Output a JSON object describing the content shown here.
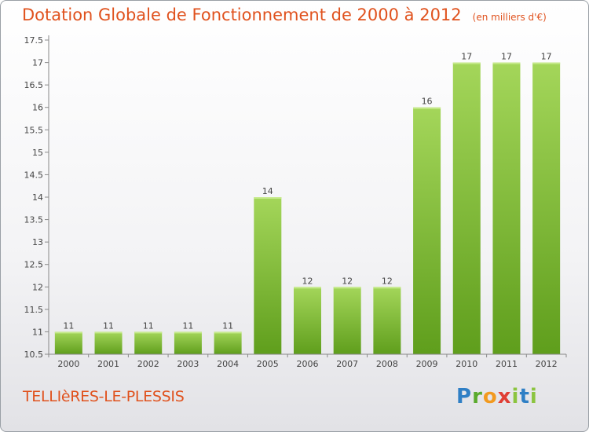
{
  "header": {
    "title": "Dotation Globale de Fonctionnement de 2000 à 2012",
    "unit": "(en milliers d'€)"
  },
  "footer": {
    "commune": "TELLIèRES-LE-PLESSIS",
    "logo": "Proxiti"
  },
  "chart_data": {
    "type": "bar",
    "title": "Dotation Globale de Fonctionnement de 2000 à 2012",
    "subtitle": "(en milliers d'€)",
    "categories": [
      "2000",
      "2001",
      "2002",
      "2003",
      "2004",
      "2005",
      "2006",
      "2007",
      "2008",
      "2009",
      "2010",
      "2011",
      "2012"
    ],
    "values": [
      11,
      11,
      11,
      11,
      11,
      14,
      12,
      12,
      12,
      16,
      17,
      17,
      17
    ],
    "data_labels": [
      "11",
      "11",
      "11",
      "11",
      "11",
      "14",
      "12",
      "12",
      "12",
      "16",
      "17",
      "17",
      "17"
    ],
    "ylim": [
      10.5,
      17.5
    ],
    "yticks": [
      "10.5",
      "11",
      "11.5",
      "12",
      "12.5",
      "13",
      "13.5",
      "14",
      "14.5",
      "15",
      "15.5",
      "16",
      "16.5",
      "17",
      "17.5"
    ],
    "grid": false,
    "colors": {
      "bar_top": "#a4d65a",
      "bar_bottom": "#5f9e1c",
      "axis": "#888888"
    }
  }
}
